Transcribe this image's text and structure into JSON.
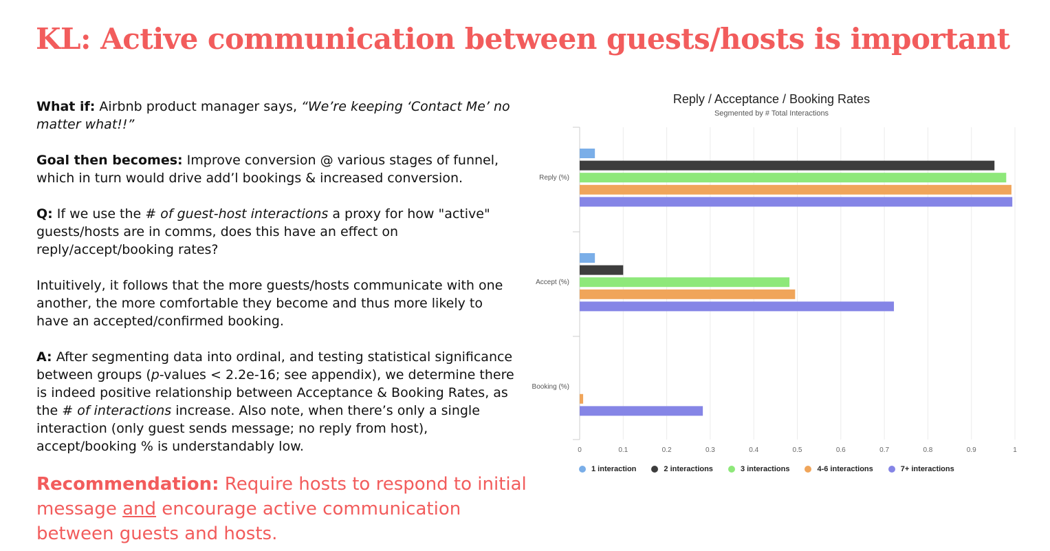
{
  "slide": {
    "title": "KL: Active communication between guests/hosts is important",
    "what_if": {
      "label": "What if:",
      "text": " Airbnb product manager says, ",
      "quote": "“We’re keeping ‘Contact Me’ no matter what!!”"
    },
    "goal": {
      "label": "Goal then becomes:",
      "text": " Improve conversion @ various stages of funnel, which in turn would drive add’l bookings & increased conversion."
    },
    "question": {
      "label": "Q:",
      "text_before": " If we use the ",
      "italic": "# of guest-host interactions",
      "text_after": " a proxy for how \"active\" guests/hosts are in comms, does this have an effect on reply/accept/booking rates?"
    },
    "intuition": "Intuitively, it follows that the more guests/hosts communicate with one another, the more comfortable they become and thus more likely to have an accepted/confirmed booking.",
    "answer": {
      "label": "A:",
      "text_1": " After segmenting data into ordinal, and testing statistical significance between groups (",
      "p_italic": "p",
      "text_2": "-values < 2.2e-16; see appendix), we determine there is indeed positive relationship between Acceptance & Booking Rates, as the ",
      "italic": "# of interactions",
      "text_3": " increase. Also note, when there’s only a single interaction (only guest sends message; no reply from host), accept/booking % is understandably low."
    },
    "recommendation": {
      "label": "Recommendation:",
      "text_1": " Require hosts to respond to initial message ",
      "underlined": "and",
      "text_2": " encourage active communication between guests and hosts."
    }
  },
  "chart_data": {
    "type": "bar",
    "orientation": "horizontal",
    "title": "Reply / Acceptance / Booking Rates",
    "subtitle": "Segmented by # Total Interactions",
    "categories": [
      "Reply (%)",
      "Accept (%)",
      "Booking (%)"
    ],
    "series": [
      {
        "name": "1 interaction",
        "color": "#7aaee8",
        "values": [
          0.035,
          0.035,
          0.0
        ]
      },
      {
        "name": "2 interactions",
        "color": "#3d3d3d",
        "values": [
          0.953,
          0.1,
          0.0
        ]
      },
      {
        "name": "3 interactions",
        "color": "#8ee87a",
        "values": [
          0.98,
          0.482,
          0.0
        ]
      },
      {
        "name": "4-6 interactions",
        "color": "#f0a55a",
        "values": [
          0.992,
          0.495,
          0.008
        ]
      },
      {
        "name": "7+ interactions",
        "color": "#8585e6",
        "values": [
          0.994,
          0.722,
          0.283
        ]
      }
    ],
    "xlim": [
      0,
      1
    ],
    "x_ticks": [
      "0",
      "0.1",
      "0.2",
      "0.3",
      "0.4",
      "0.5",
      "0.6",
      "0.7",
      "0.8",
      "0.9",
      "1"
    ],
    "grid": true,
    "legend_position": "bottom"
  }
}
